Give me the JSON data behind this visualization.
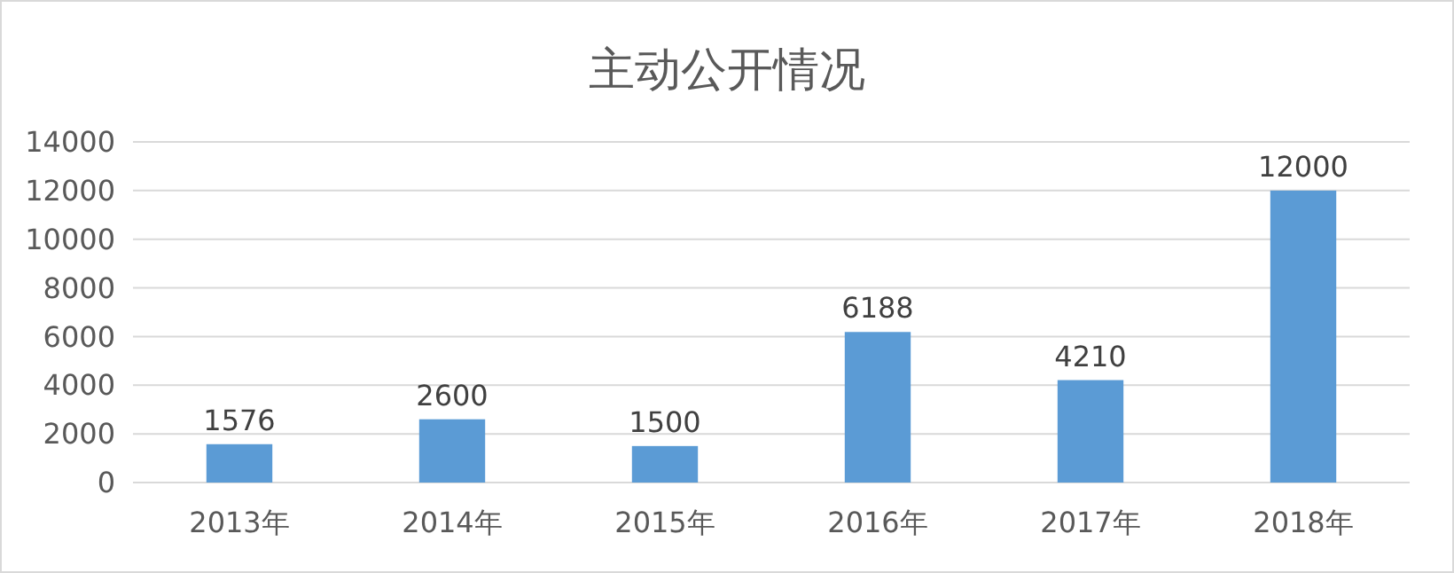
{
  "chart_data": {
    "type": "bar",
    "title": "主动公开情况",
    "categories": [
      "2013年",
      "2014年",
      "2015年",
      "2016年",
      "2017年",
      "2018年"
    ],
    "values": [
      1576,
      2600,
      1500,
      6188,
      4210,
      12000
    ],
    "color": "#5b9bd5",
    "ylim": [
      0,
      14000
    ],
    "yticks": [
      0,
      2000,
      4000,
      6000,
      8000,
      10000,
      12000,
      14000
    ],
    "grid": "y",
    "data_labels": true
  }
}
